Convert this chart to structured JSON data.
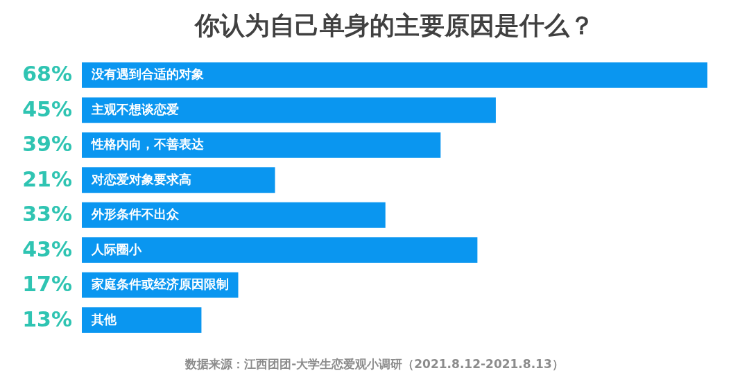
{
  "chart_data": {
    "type": "bar",
    "orientation": "horizontal",
    "title": "你认为自己单身的主要原因是什么？",
    "categories": [
      "没有遇到合适的对象",
      "主观不想谈恋爱",
      "性格内向，不善表达",
      "对恋爱对象要求高",
      "外形条件不出众",
      "人际圈小",
      "家庭条件或经济原因限制",
      "其他"
    ],
    "values": [
      68,
      45,
      39,
      21,
      33,
      43,
      17,
      13
    ],
    "value_labels": [
      "68%",
      "45%",
      "39%",
      "21%",
      "33%",
      "43%",
      "17%",
      "13%"
    ],
    "color": "#0a96f0",
    "xlim": [
      0,
      68
    ],
    "tick_labels": false,
    "annotations": [
      "数据来源：江西团团-大学生恋爱观小调研（2021.8.12-2021.8.13）"
    ]
  }
}
